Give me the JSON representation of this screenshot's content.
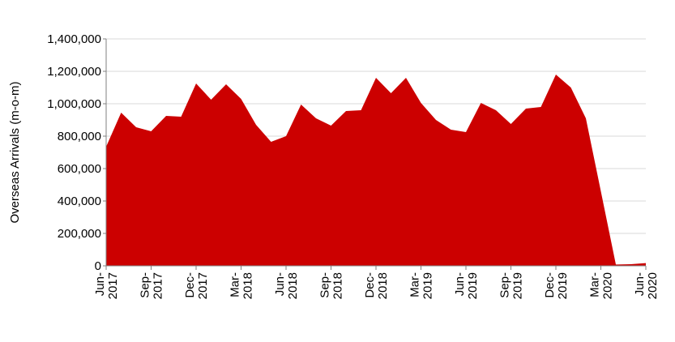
{
  "chart_data": {
    "type": "area",
    "title": "",
    "xlabel": "",
    "ylabel": "Overseas Arrivals (m-o-m)",
    "ylim": [
      0,
      1400000
    ],
    "yticks": [
      0,
      200000,
      400000,
      600000,
      800000,
      1000000,
      1200000,
      1400000
    ],
    "ytick_labels": [
      "0",
      "200,000",
      "400,000",
      "600,000",
      "800,000",
      "1,000,000",
      "1,200,000",
      "1,400,000"
    ],
    "x": [
      "Jun-2017",
      "Jul-2017",
      "Aug-2017",
      "Sep-2017",
      "Oct-2017",
      "Nov-2017",
      "Dec-2017",
      "Jan-2018",
      "Feb-2018",
      "Mar-2018",
      "Apr-2018",
      "May-2018",
      "Jun-2018",
      "Jul-2018",
      "Aug-2018",
      "Sep-2018",
      "Oct-2018",
      "Nov-2018",
      "Dec-2018",
      "Jan-2019",
      "Feb-2019",
      "Mar-2019",
      "Apr-2019",
      "May-2019",
      "Jun-2019",
      "Jul-2019",
      "Aug-2019",
      "Sep-2019",
      "Oct-2019",
      "Nov-2019",
      "Dec-2019",
      "Jan-2020",
      "Feb-2020",
      "Mar-2020",
      "Apr-2020",
      "May-2020",
      "Jun-2020"
    ],
    "xtick_labels": [
      {
        "index": 0,
        "month": "Jun-",
        "year": "2017"
      },
      {
        "index": 3,
        "month": "Sep-",
        "year": "2017"
      },
      {
        "index": 6,
        "month": "Dec-",
        "year": "2017"
      },
      {
        "index": 9,
        "month": "Mar-",
        "year": "2018"
      },
      {
        "index": 12,
        "month": "Jun-",
        "year": "2018"
      },
      {
        "index": 15,
        "month": "Sep-",
        "year": "2018"
      },
      {
        "index": 18,
        "month": "Dec-",
        "year": "2018"
      },
      {
        "index": 21,
        "month": "Mar-",
        "year": "2019"
      },
      {
        "index": 24,
        "month": "Jun-",
        "year": "2019"
      },
      {
        "index": 27,
        "month": "Sep-",
        "year": "2019"
      },
      {
        "index": 30,
        "month": "Dec-",
        "year": "2019"
      },
      {
        "index": 33,
        "month": "Mar-",
        "year": "2020"
      },
      {
        "index": 36,
        "month": "Jun-",
        "year": "2020"
      }
    ],
    "series": [
      {
        "values": [
          735000,
          945000,
          855000,
          830000,
          925000,
          920000,
          1125000,
          1025000,
          1120000,
          1030000,
          870000,
          765000,
          800000,
          995000,
          910000,
          865000,
          955000,
          960000,
          1160000,
          1065000,
          1160000,
          1005000,
          900000,
          840000,
          825000,
          1005000,
          960000,
          875000,
          970000,
          980000,
          1180000,
          1100000,
          910000,
          460000,
          8000,
          10000,
          17000
        ],
        "color": "#cc0000"
      }
    ],
    "grid": true,
    "gridline_color": "#d9d9d9"
  }
}
